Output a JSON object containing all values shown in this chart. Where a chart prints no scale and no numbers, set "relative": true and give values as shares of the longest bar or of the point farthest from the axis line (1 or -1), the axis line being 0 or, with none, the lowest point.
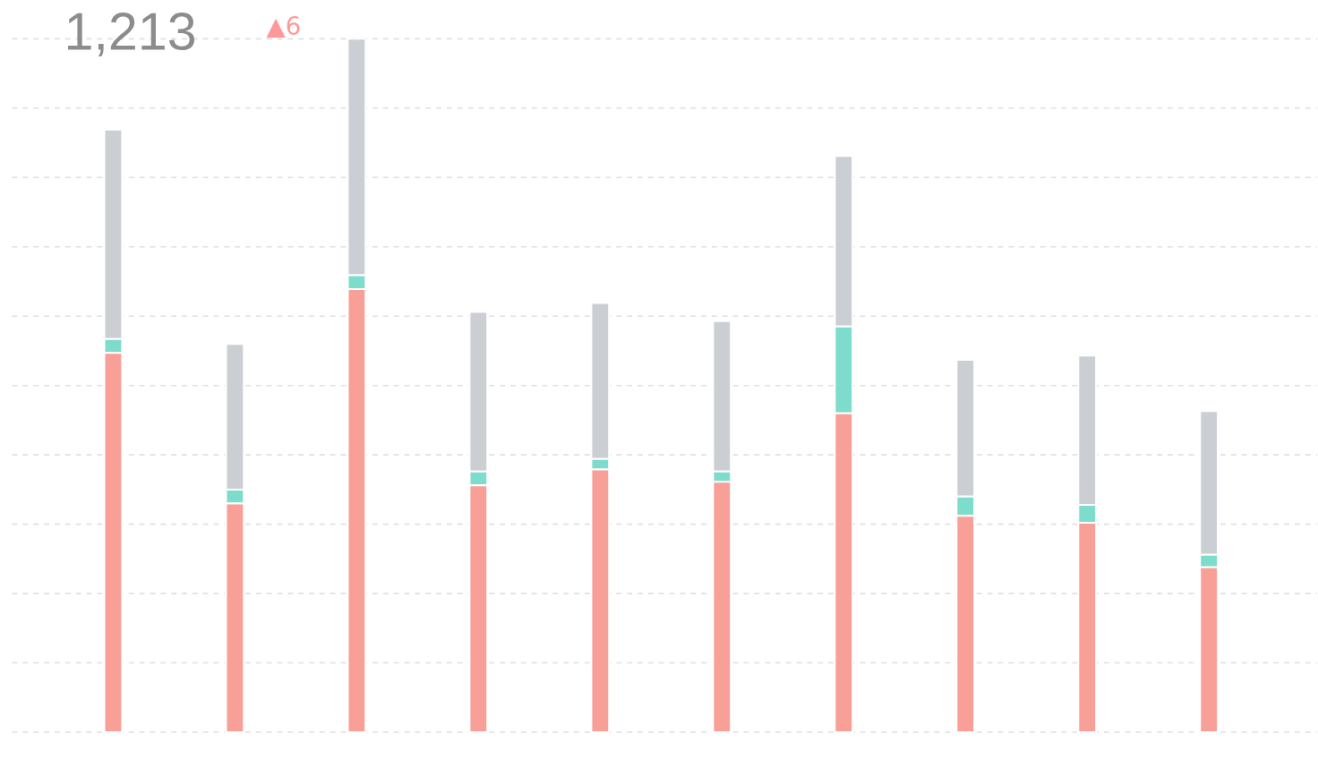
{
  "chart_data": {
    "type": "bar",
    "stacked": true,
    "relative": true,
    "grid": "y",
    "categories": [
      null,
      null,
      null,
      null,
      null,
      null,
      null,
      null,
      null,
      null
    ],
    "series": [
      {
        "color": "#f8a097",
        "values": [
          0.547,
          0.33,
          0.639,
          0.356,
          0.379,
          0.361,
          0.46,
          0.312,
          0.302,
          0.238
        ]
      },
      {
        "color": "#7ddccb",
        "values": [
          0.02,
          0.02,
          0.02,
          0.02,
          0.015,
          0.015,
          0.125,
          0.028,
          0.026,
          0.018
        ]
      },
      {
        "color": "#cbcfd4",
        "values": [
          0.302,
          0.21,
          0.341,
          0.23,
          0.225,
          0.217,
          0.246,
          0.197,
          0.215,
          0.207
        ]
      }
    ],
    "annotations": [
      "1,213",
      "▲6"
    ]
  }
}
